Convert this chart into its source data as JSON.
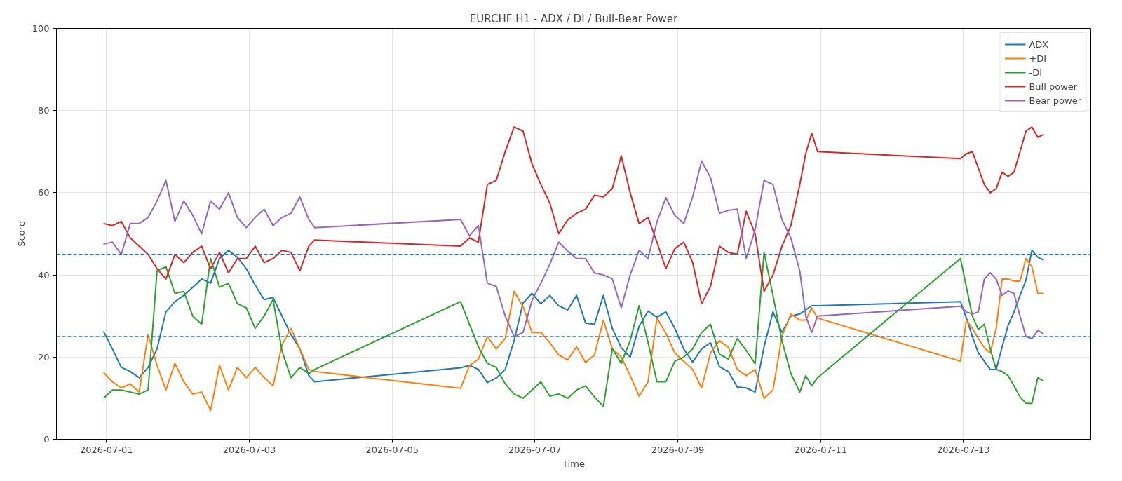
{
  "chart_data": {
    "type": "line",
    "title": "EURCHF H1 - ADX / DI / Bull-Bear Power",
    "xlabel": "Time",
    "ylabel": "Score",
    "x": [
      "2026-06-30T23:00",
      "2026-07-01T02:00",
      "2026-07-01T05:00",
      "2026-07-01T08:00",
      "2026-07-01T11:00",
      "2026-07-01T14:00",
      "2026-07-01T17:00",
      "2026-07-01T20:00",
      "2026-07-01T23:00",
      "2026-07-02T02:00",
      "2026-07-02T05:00",
      "2026-07-02T08:00",
      "2026-07-02T11:00",
      "2026-07-02T14:00",
      "2026-07-02T17:00",
      "2026-07-02T20:00",
      "2026-07-02T23:00",
      "2026-07-03T02:00",
      "2026-07-03T05:00",
      "2026-07-03T08:00",
      "2026-07-03T11:00",
      "2026-07-03T14:00",
      "2026-07-03T17:00",
      "2026-07-03T20:00",
      "2026-07-03T22:00",
      "2026-07-05T23:00",
      "2026-07-06T02:00",
      "2026-07-06T05:00",
      "2026-07-06T08:00",
      "2026-07-06T11:00",
      "2026-07-06T14:00",
      "2026-07-06T17:00",
      "2026-07-06T20:00",
      "2026-07-06T23:00",
      "2026-07-07T02:00",
      "2026-07-07T05:00",
      "2026-07-07T08:00",
      "2026-07-07T11:00",
      "2026-07-07T14:00",
      "2026-07-07T17:00",
      "2026-07-07T20:00",
      "2026-07-07T23:00",
      "2026-07-08T02:00",
      "2026-07-08T05:00",
      "2026-07-08T08:00",
      "2026-07-08T11:00",
      "2026-07-08T14:00",
      "2026-07-08T17:00",
      "2026-07-08T20:00",
      "2026-07-08T23:00",
      "2026-07-09T02:00",
      "2026-07-09T05:00",
      "2026-07-09T08:00",
      "2026-07-09T11:00",
      "2026-07-09T14:00",
      "2026-07-09T17:00",
      "2026-07-09T20:00",
      "2026-07-09T23:00",
      "2026-07-10T02:00",
      "2026-07-10T05:00",
      "2026-07-10T08:00",
      "2026-07-10T11:00",
      "2026-07-10T14:00",
      "2026-07-10T17:00",
      "2026-07-10T19:00",
      "2026-07-10T21:00",
      "2026-07-10T23:00",
      "2026-07-12T23:00",
      "2026-07-13T01:00",
      "2026-07-13T03:00",
      "2026-07-13T05:00",
      "2026-07-13T07:00",
      "2026-07-13T09:00",
      "2026-07-13T11:00",
      "2026-07-13T13:00",
      "2026-07-13T15:00",
      "2026-07-13T17:00",
      "2026-07-13T19:00",
      "2026-07-13T21:00",
      "2026-07-13T23:00",
      "2026-07-14T01:00",
      "2026-07-14T03:00"
    ],
    "series": [
      {
        "name": "ADX",
        "color": "#1f77b4",
        "values": [
          26.3,
          22,
          17.5,
          16.5,
          15,
          17.5,
          22,
          31,
          33.5,
          35,
          37,
          39,
          38,
          44,
          46,
          44.3,
          41.5,
          37.5,
          34,
          34.5,
          30,
          25.5,
          22,
          15.5,
          14,
          17.4,
          18,
          17,
          13.8,
          14.9,
          17,
          24,
          33.2,
          35.5,
          33,
          35,
          32.5,
          31.5,
          35,
          28.3,
          28,
          35,
          27,
          22.3,
          20,
          27.5,
          31.2,
          29.7,
          31,
          27,
          22,
          18.8,
          22,
          23.5,
          17.7,
          16.5,
          12.7,
          12.5,
          11.5,
          22.5,
          31,
          26,
          30,
          30.5,
          31.5,
          32.5,
          32.5,
          33.5,
          29.5,
          25,
          21,
          19,
          17,
          17,
          22.5,
          27.7,
          31,
          35,
          38.7,
          46,
          44.3,
          43.6
        ]
      },
      {
        "name": "+DI",
        "color": "#ff7f0e",
        "values": [
          16.3,
          14,
          12.5,
          13.5,
          11.5,
          25.5,
          18,
          12,
          18.5,
          14,
          11,
          11.5,
          7,
          18,
          12,
          17.5,
          15,
          17.5,
          15,
          13,
          23,
          27,
          22,
          17,
          16.5,
          12.4,
          18,
          19.5,
          25,
          22,
          24.5,
          36,
          32.3,
          26,
          26,
          23.5,
          20.5,
          19.3,
          22.5,
          18.7,
          20.5,
          29,
          22,
          20,
          15.5,
          10.5,
          14,
          29.5,
          25.8,
          21,
          19,
          17,
          12.5,
          21,
          24,
          22.4,
          17,
          15.5,
          17,
          10,
          12,
          25,
          30.5,
          29,
          29,
          32,
          29.5,
          19,
          29,
          27,
          24.5,
          22.3,
          21,
          27,
          39,
          39,
          38.5,
          38.5,
          44,
          42,
          35.5,
          35.5
        ]
      },
      {
        "name": "-DI",
        "color": "#2ca02c",
        "values": [
          10,
          12,
          12,
          11.5,
          11,
          12,
          41,
          42,
          35.5,
          36,
          30,
          28,
          44,
          37,
          38,
          33,
          32,
          27,
          30,
          34,
          21.5,
          15,
          17.5,
          16,
          17,
          33.5,
          28,
          22.5,
          18.5,
          17.5,
          13.5,
          11,
          10,
          12,
          14,
          10.5,
          11,
          10,
          12,
          13,
          10.3,
          8,
          22,
          18.5,
          24,
          32.5,
          23.6,
          14,
          14,
          19,
          20,
          22,
          26,
          28,
          20.7,
          19.5,
          24.5,
          21.6,
          18.4,
          45.5,
          35,
          24,
          16,
          11.5,
          15.5,
          13,
          15,
          44,
          37,
          30,
          26.7,
          28,
          22,
          17,
          16.5,
          15.5,
          13,
          10.3,
          8.8,
          8.7,
          15,
          14.1
        ]
      },
      {
        "name": "Bull power",
        "color": "#d62728",
        "values": [
          52.5,
          52,
          53,
          49,
          47,
          45,
          41.5,
          39,
          45,
          43,
          45.5,
          47,
          41.5,
          45.5,
          40.5,
          44,
          44,
          47,
          43,
          44,
          46,
          45.5,
          41,
          47,
          48.5,
          47,
          49,
          48,
          62,
          63,
          70,
          76,
          75,
          67,
          62,
          57.5,
          50,
          53.4,
          55,
          56,
          59.4,
          59,
          61,
          69,
          60,
          52.5,
          54,
          48,
          41.5,
          46.4,
          48,
          43,
          33,
          37.2,
          47,
          45.5,
          45,
          55.5,
          50,
          36,
          40,
          47,
          52,
          62,
          69.5,
          74.5,
          70,
          68.3,
          69.5,
          70,
          66,
          62,
          60,
          61,
          65,
          64,
          65,
          70,
          75,
          76,
          73.5,
          74.2
        ]
      },
      {
        "name": "Bear power",
        "color": "#9467bd",
        "values": [
          47.5,
          48,
          45,
          52.5,
          52.5,
          54,
          58,
          63,
          53,
          58,
          54.5,
          50,
          58,
          56,
          60,
          54,
          51.5,
          54,
          56,
          52,
          54,
          55,
          59,
          53.5,
          51.5,
          53.5,
          49.5,
          52,
          38,
          37.2,
          30,
          25,
          26,
          33.8,
          38,
          42.6,
          48,
          45.8,
          44,
          44,
          40.5,
          40,
          39,
          32,
          40,
          46,
          44,
          52.9,
          58.8,
          54.5,
          52.5,
          59,
          67.7,
          63.7,
          55,
          55.7,
          56,
          44,
          51,
          63,
          62,
          53.5,
          49,
          41,
          30,
          26,
          30,
          32.4,
          31,
          30.5,
          31,
          39,
          40.5,
          39,
          35,
          36.1,
          35.5,
          30,
          25,
          24.5,
          26.5,
          25.6
        ]
      }
    ],
    "ref_lines": [
      {
        "axis": "y",
        "value": 45,
        "color": "#1f77b4",
        "line_style": "dashed"
      },
      {
        "axis": "y",
        "value": 25,
        "color": "#1f77b4",
        "line_style": "dashed"
      }
    ],
    "xlim": [
      "2026-06-30T07:12",
      "2026-07-14T18:48"
    ],
    "xticks": [
      "2026-07-01",
      "2026-07-03",
      "2026-07-05",
      "2026-07-07",
      "2026-07-09",
      "2026-07-11",
      "2026-07-13"
    ],
    "ylim": [
      0,
      100
    ],
    "yticks": [
      0,
      20,
      40,
      60,
      80,
      100
    ],
    "grid": true,
    "legend": "top right"
  }
}
